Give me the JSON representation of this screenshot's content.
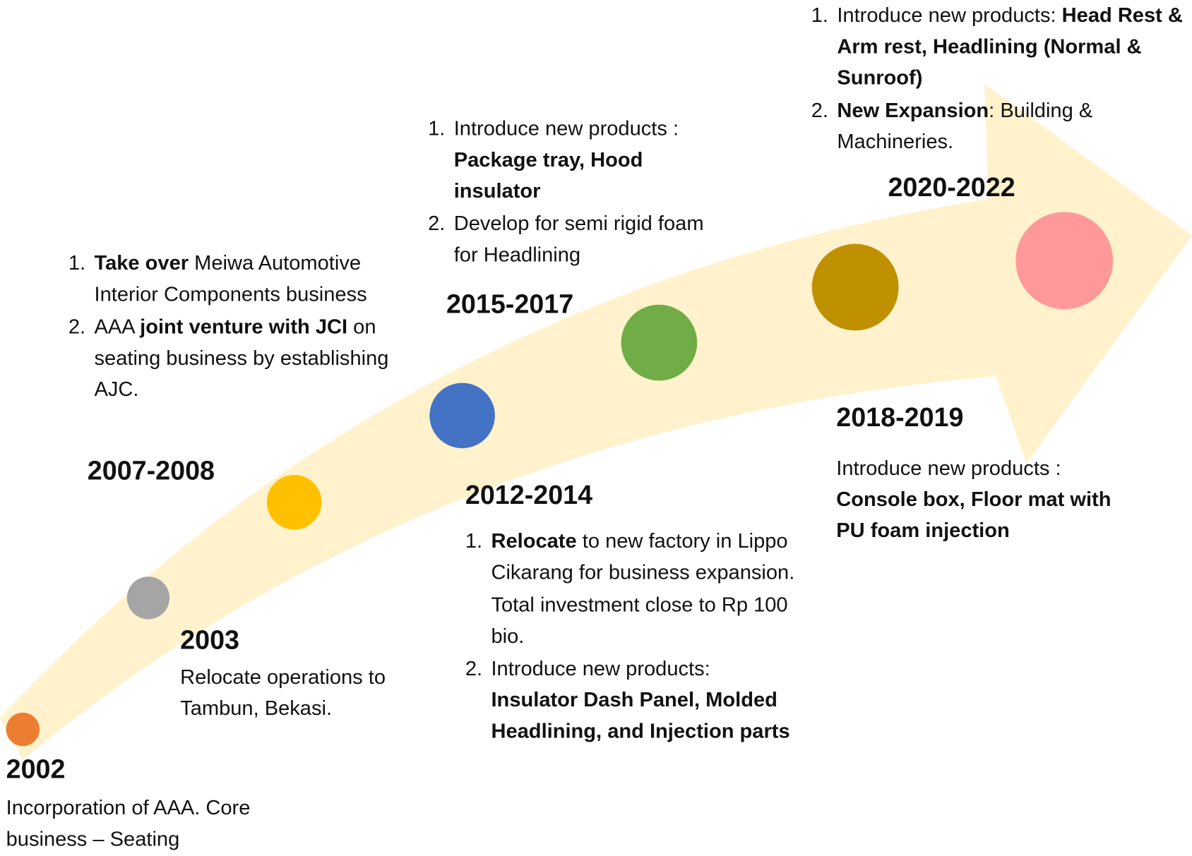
{
  "milestones": [
    {
      "year": "2002",
      "dot_color": "#ed7d31",
      "items": [
        {
          "parts": [
            {
              "text": "Incorporation of AAA. Core business – Seating",
              "bold": false
            }
          ]
        }
      ]
    },
    {
      "year": "2003",
      "dot_color": "#a5a5a5",
      "items": [
        {
          "parts": [
            {
              "text": "Relocate operations to Tambun, Bekasi.",
              "bold": false
            }
          ]
        }
      ]
    },
    {
      "year": "2007-2008",
      "dot_color": "#ffc000",
      "items": [
        {
          "num": "1.",
          "parts": [
            {
              "text": "Take over",
              "bold": true
            },
            {
              "text": " Meiwa Automotive Interior Components business",
              "bold": false
            }
          ]
        },
        {
          "num": "2.",
          "parts": [
            {
              "text": "AAA ",
              "bold": false
            },
            {
              "text": "joint venture with JCI",
              "bold": true
            },
            {
              "text": " on seating business by establishing AJC.",
              "bold": false
            }
          ]
        }
      ]
    },
    {
      "year": "2012-2014",
      "dot_color": "#4472c4",
      "items": [
        {
          "num": "1.",
          "parts": [
            {
              "text": "Relocate",
              "bold": true
            },
            {
              "text": " to new factory in Lippo Cikarang for  business expansion.",
              "bold": false
            }
          ]
        },
        {
          "parts": [
            {
              "text": "Total investment close to Rp 100 bio.",
              "bold": false
            }
          ]
        },
        {
          "num": "2.",
          "parts": [
            {
              "text": "Introduce new products: ",
              "bold": false
            },
            {
              "text": "Insulator Dash Panel, Molded Headlining, and Injection parts",
              "bold": true
            }
          ]
        }
      ]
    },
    {
      "year": "2015-2017",
      "dot_color": "#70ad47",
      "items": [
        {
          "num": "1.",
          "parts": [
            {
              "text": "Introduce new products : ",
              "bold": false
            },
            {
              "text": "Package tray, Hood insulator",
              "bold": true
            }
          ]
        },
        {
          "num": "2.",
          "parts": [
            {
              "text": "Develop for semi rigid foam for Headlining",
              "bold": false
            }
          ]
        }
      ]
    },
    {
      "year": "2018-2019",
      "dot_color": "#bf9000",
      "items": [
        {
          "parts": [
            {
              "text": "Introduce new products : ",
              "bold": false
            },
            {
              "text": "Console box, Floor mat with PU foam injection",
              "bold": true
            }
          ]
        }
      ]
    },
    {
      "year": "2020-2022",
      "dot_color": "#ff9999",
      "items": [
        {
          "num": "1.",
          "parts": [
            {
              "text": "Introduce new products: ",
              "bold": false
            },
            {
              "text": "Head Rest & Arm rest, Headlining (Normal & Sunroof)",
              "bold": true
            }
          ]
        },
        {
          "num": "2.",
          "parts": [
            {
              "text": "New Expansion",
              "bold": true
            },
            {
              "text": ": Building & Machineries.",
              "bold": false
            }
          ]
        }
      ]
    }
  ]
}
